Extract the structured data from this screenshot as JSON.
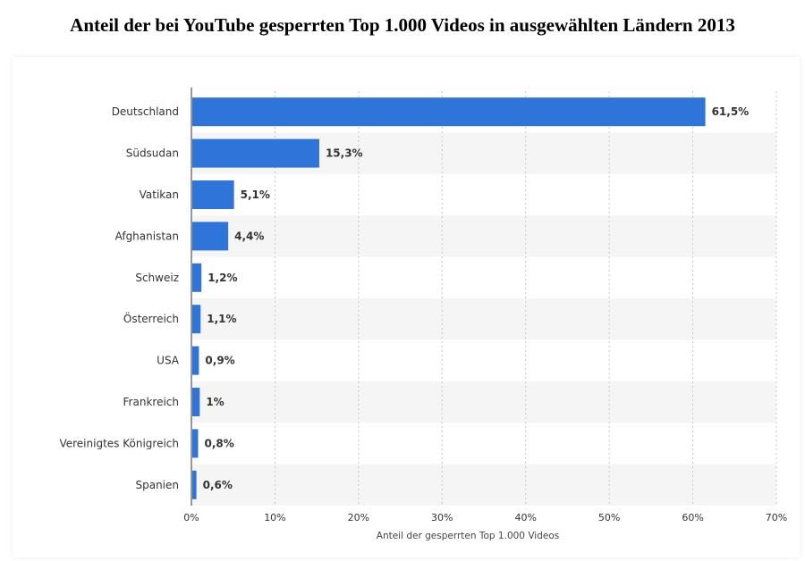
{
  "title": "Anteil der bei YouTube gesperrten Top 1.000 Videos in ausgewählten Ländern 2013",
  "chart_data": {
    "type": "bar",
    "orientation": "horizontal",
    "categories": [
      "Deutschland",
      "Südsudan",
      "Vatikan",
      "Afghanistan",
      "Schweiz",
      "Österreich",
      "USA",
      "Frankreich",
      "Vereinigtes Königreich",
      "Spanien"
    ],
    "values": [
      61.5,
      15.3,
      5.1,
      4.4,
      1.2,
      1.1,
      0.9,
      1,
      0.8,
      0.6
    ],
    "value_labels": [
      "61,5%",
      "15,3%",
      "5,1%",
      "4,4%",
      "1,2%",
      "1,1%",
      "0,9%",
      "1%",
      "0,8%",
      "0,6%"
    ],
    "xlabel": "Anteil der gesperrten Top 1.000 Videos",
    "ylabel": "",
    "xlim": [
      0,
      70
    ],
    "xticks": [
      0,
      10,
      20,
      30,
      40,
      50,
      60,
      70
    ],
    "xtick_labels": [
      "0%",
      "10%",
      "20%",
      "30%",
      "40%",
      "50%",
      "60%",
      "70%"
    ],
    "bar_color": "#2f74d8",
    "alt_row_color": "#f5f5f5",
    "grid": true,
    "legend": "none"
  }
}
